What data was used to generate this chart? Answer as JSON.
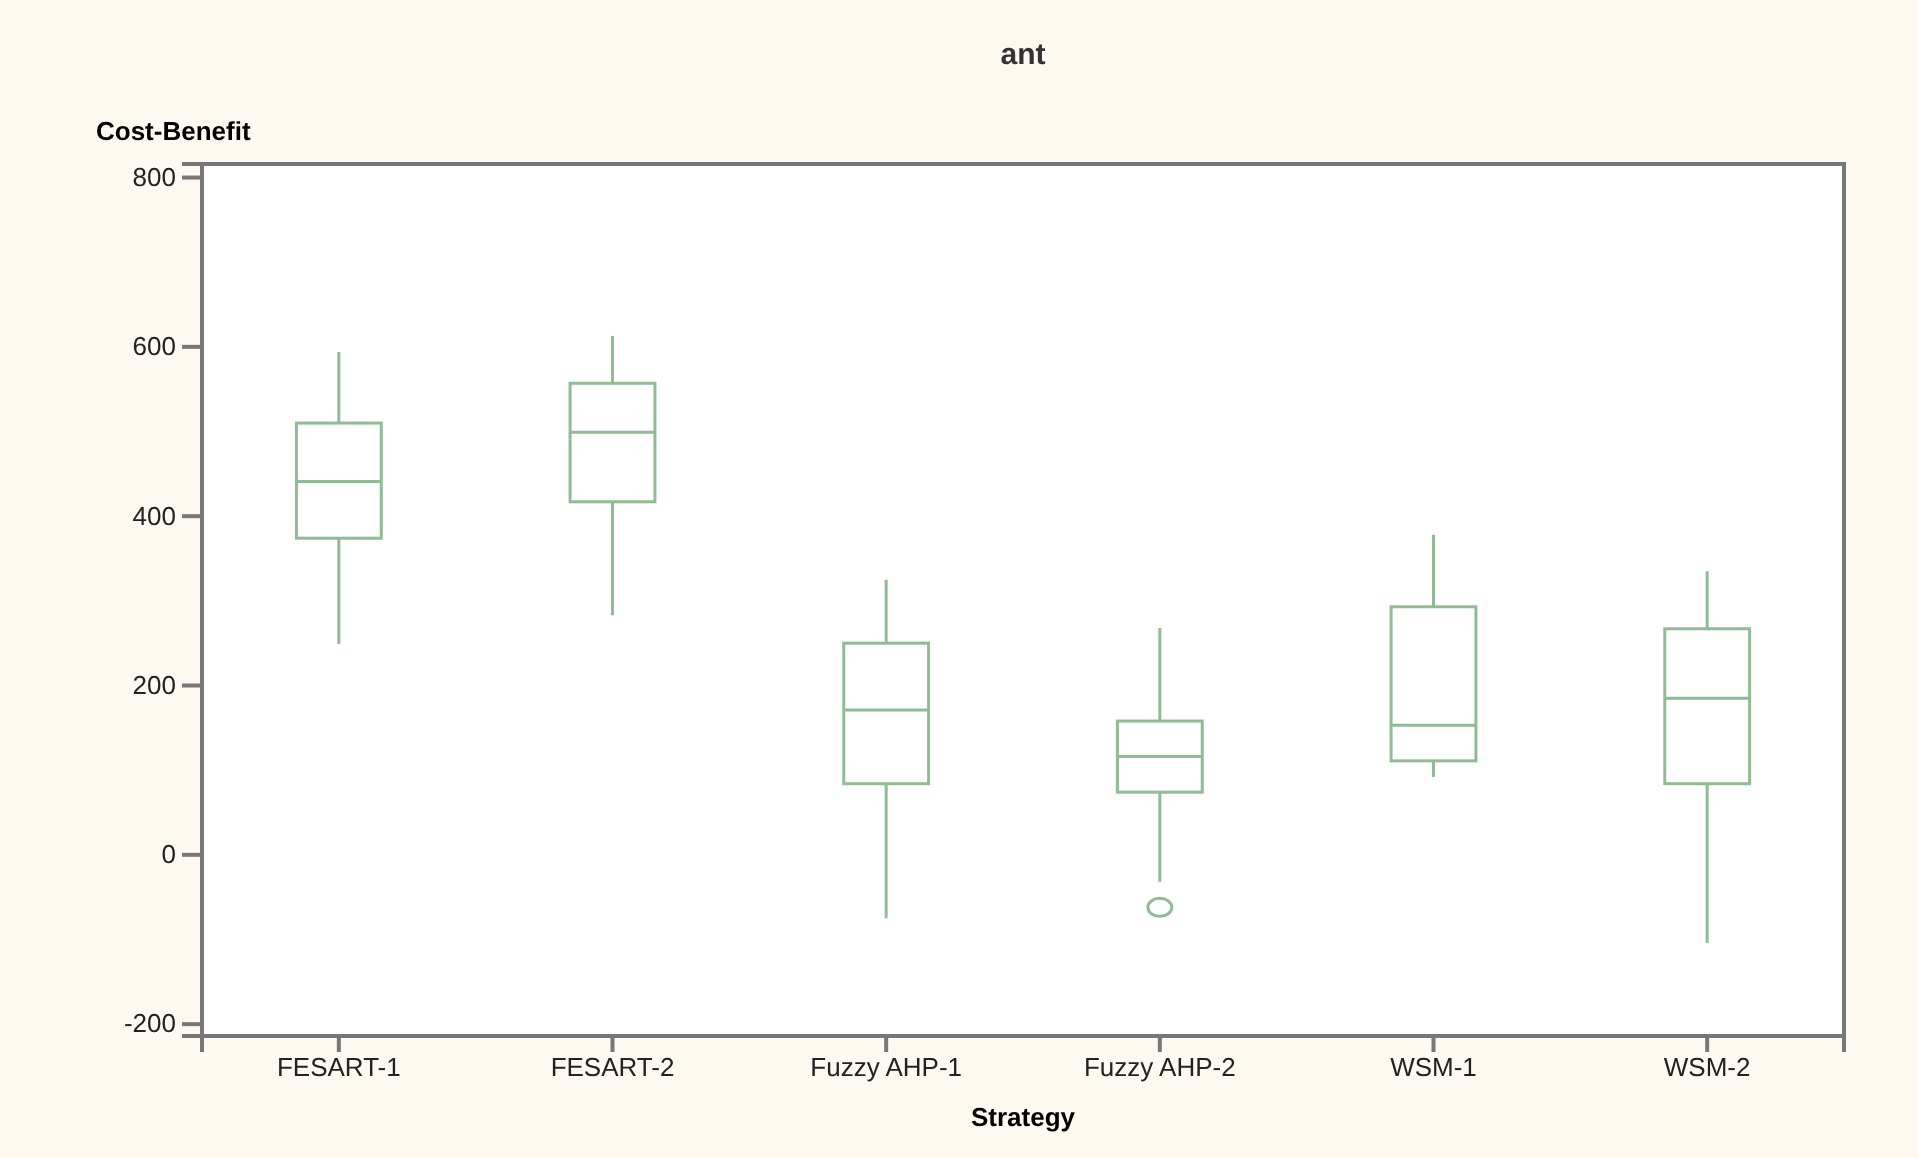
{
  "chart_data": {
    "type": "box",
    "title": "ant",
    "xlabel": "Strategy",
    "ylabel": "Cost-Benefit",
    "categories": [
      "FESART-1",
      "FESART-2",
      "Fuzzy AHP-1",
      "Fuzzy AHP-2",
      "WSM-1",
      "WSM-2"
    ],
    "color": "#8fbc94",
    "boxes": [
      {
        "low": 249,
        "q1": 374,
        "median": 441,
        "q3": 510,
        "high": 594
      },
      {
        "low": 283,
        "q1": 417,
        "median": 499,
        "q3": 557,
        "high": 613
      },
      {
        "low": -75,
        "q1": 84,
        "median": 171,
        "q3": 250,
        "high": 325
      },
      {
        "low": -32,
        "q1": 74,
        "median": 116,
        "q3": 158,
        "high": 268,
        "outliers": [
          -62
        ]
      },
      {
        "low": 92,
        "q1": 111,
        "median": 153,
        "q3": 293,
        "high": 378
      },
      {
        "low": -104,
        "q1": 84,
        "median": 185,
        "q3": 267,
        "high": 335
      }
    ],
    "ylim": [
      -214,
      816
    ],
    "yticks": [
      -200,
      0,
      200,
      400,
      600,
      800
    ],
    "grid": false
  }
}
